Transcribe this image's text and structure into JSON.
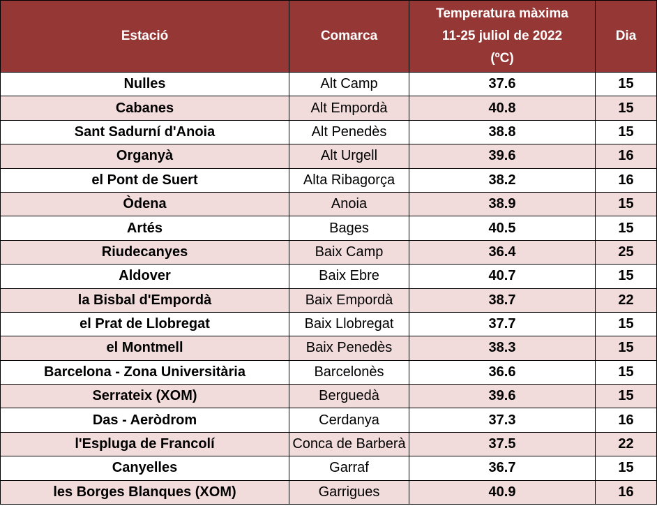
{
  "table": {
    "headers": {
      "station": "Estació",
      "comarca": "Comarca",
      "temp_line1": "Temperatura màxima",
      "temp_line2": "11-25 juliol de 2022",
      "temp_line3": "(ºC)",
      "day": "Dia"
    },
    "rows": [
      {
        "station": "Nulles",
        "comarca": "Alt Camp",
        "temp": "37.6",
        "day": "15"
      },
      {
        "station": "Cabanes",
        "comarca": "Alt Empordà",
        "temp": "40.8",
        "day": "15"
      },
      {
        "station": "Sant Sadurní d'Anoia",
        "comarca": "Alt Penedès",
        "temp": "38.8",
        "day": "15"
      },
      {
        "station": "Organyà",
        "comarca": "Alt Urgell",
        "temp": "39.6",
        "day": "16"
      },
      {
        "station": "el Pont de Suert",
        "comarca": "Alta Ribagorça",
        "temp": "38.2",
        "day": "16"
      },
      {
        "station": "Òdena",
        "comarca": "Anoia",
        "temp": "38.9",
        "day": "15"
      },
      {
        "station": "Artés",
        "comarca": "Bages",
        "temp": "40.5",
        "day": "15"
      },
      {
        "station": "Riudecanyes",
        "comarca": "Baix Camp",
        "temp": "36.4",
        "day": "25"
      },
      {
        "station": "Aldover",
        "comarca": "Baix Ebre",
        "temp": "40.7",
        "day": "15"
      },
      {
        "station": "la Bisbal d'Empordà",
        "comarca": "Baix Empordà",
        "temp": "38.7",
        "day": "22"
      },
      {
        "station": "el Prat de Llobregat",
        "comarca": "Baix Llobregat",
        "temp": "37.7",
        "day": "15"
      },
      {
        "station": "el Montmell",
        "comarca": "Baix Penedès",
        "temp": "38.3",
        "day": "15"
      },
      {
        "station": "Barcelona - Zona Universitària",
        "comarca": "Barcelonès",
        "temp": "36.6",
        "day": "15"
      },
      {
        "station": "Serrateix (XOM)",
        "comarca": "Berguedà",
        "temp": "39.6",
        "day": "15"
      },
      {
        "station": "Das - Aeròdrom",
        "comarca": "Cerdanya",
        "temp": "37.3",
        "day": "16"
      },
      {
        "station": "l'Espluga de Francolí",
        "comarca": "Conca de Barberà",
        "temp": "37.5",
        "day": "22"
      },
      {
        "station": "Canyelles",
        "comarca": "Garraf",
        "temp": "36.7",
        "day": "15"
      },
      {
        "station": "les Borges Blanques (XOM)",
        "comarca": "Garrigues",
        "temp": "40.9",
        "day": "16"
      }
    ]
  },
  "colors": {
    "header_bg": "#953735",
    "header_text": "#ffffff",
    "band_row_bg": "#f2dcdb",
    "border": "#000000"
  }
}
